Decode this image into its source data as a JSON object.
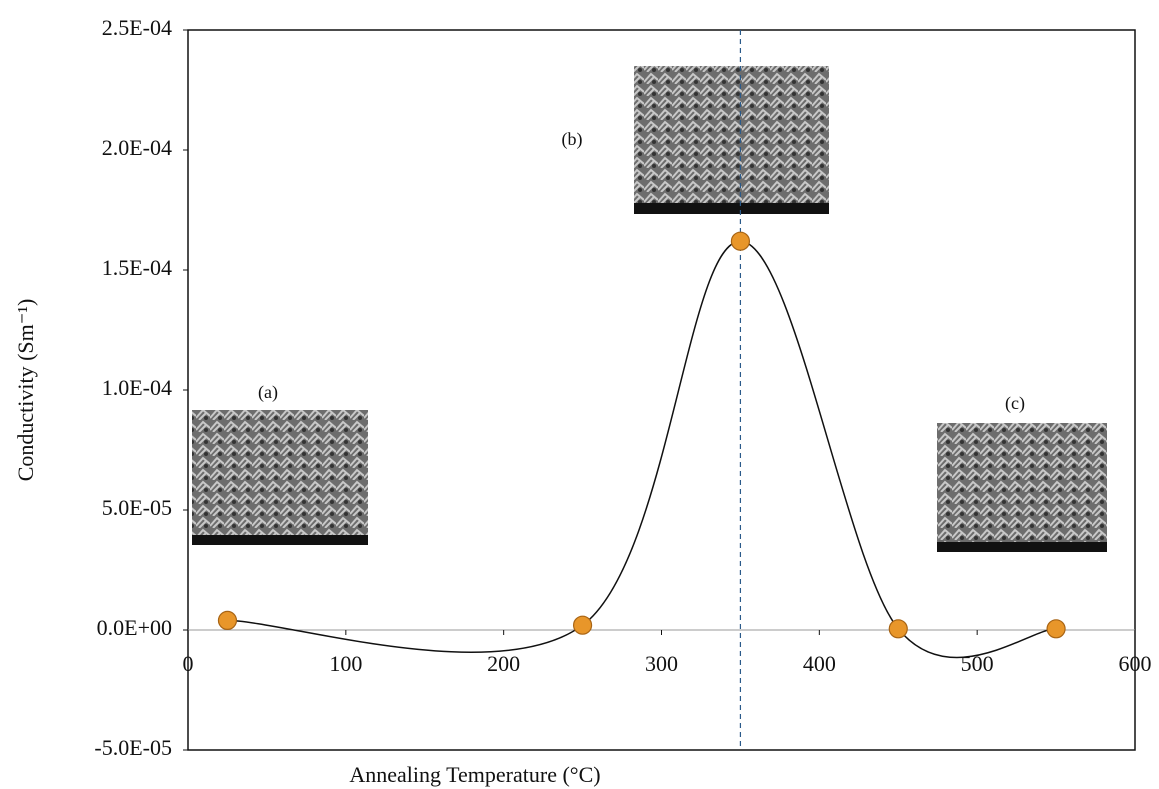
{
  "chart_data": {
    "type": "scatter",
    "x_label": "Annealing Temperature (°C)",
    "y_label": "Conductivity (Sm⁻¹)",
    "x": [
      25,
      250,
      350,
      450,
      550
    ],
    "series": [
      {
        "color": "#e8962a",
        "values": [
          4e-06,
          2e-06,
          0.000162,
          5e-07,
          5e-07
        ]
      }
    ],
    "smooth_line": true,
    "line_color": "#111111",
    "xlim": [
      0,
      600
    ],
    "xticks": [
      0,
      100,
      200,
      300,
      400,
      500,
      600
    ],
    "ylim": [
      -5e-05,
      0.00025
    ],
    "yticks": [
      {
        "value": -5e-05,
        "label": "-5.0E-05"
      },
      {
        "value": 0,
        "label": "0.0E+00"
      },
      {
        "value": 5e-05,
        "label": "5.0E-05"
      },
      {
        "value": 0.0001,
        "label": "1.0E-04"
      },
      {
        "value": 0.00015,
        "label": "1.5E-04"
      },
      {
        "value": 0.0002,
        "label": "2.0E-04"
      },
      {
        "value": 0.00025,
        "label": "2.5E-04"
      }
    ],
    "reference_line_x": 350,
    "annotations": [
      "(a)",
      "(b)",
      "(c)"
    ]
  }
}
